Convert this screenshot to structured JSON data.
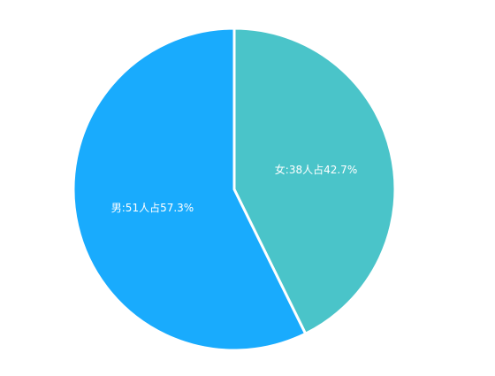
{
  "chart_data": {
    "type": "pie",
    "values": [
      38,
      51
    ],
    "value_labels": [
      "女:38人占42.7%",
      "男:51人占57.3%"
    ],
    "colors": [
      "#4ac4c9",
      "#19abfd"
    ]
  }
}
